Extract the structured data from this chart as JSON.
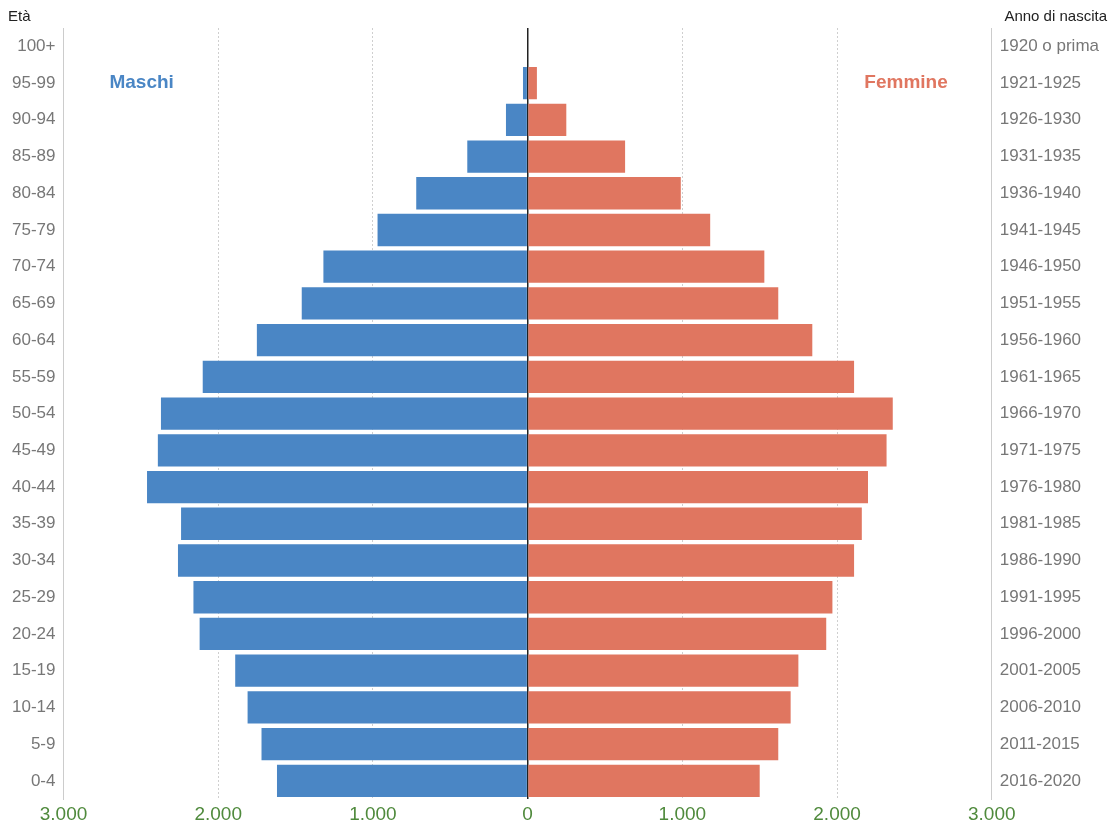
{
  "chart_data": {
    "type": "bar",
    "orientation": "horizontal",
    "stacked": true,
    "ylabel": "Età",
    "y2label": "Anno di nascita",
    "categories": [
      "100+",
      "95-99",
      "90-94",
      "85-89",
      "80-84",
      "75-79",
      "70-74",
      "65-69",
      "60-64",
      "55-59",
      "50-54",
      "45-49",
      "40-44",
      "35-39",
      "30-34",
      "25-29",
      "20-24",
      "15-19",
      "10-14",
      "5-9",
      "0-4"
    ],
    "y2_categories": [
      "1920 o prima",
      "1921-1925",
      "1926-1930",
      "1931-1935",
      "1936-1940",
      "1941-1945",
      "1946-1950",
      "1951-1955",
      "1956-1960",
      "1961-1965",
      "1966-1970",
      "1971-1975",
      "1976-1980",
      "1981-1985",
      "1986-1990",
      "1991-1995",
      "1996-2000",
      "2001-2005",
      "2006-2010",
      "2011-2015",
      "2016-2020"
    ],
    "series": [
      {
        "name": "Maschi",
        "color": "#4a86c5",
        "values": [
          0,
          -30,
          -140,
          -390,
          -720,
          -970,
          -1320,
          -1460,
          -1750,
          -2100,
          -2370,
          -2390,
          -2460,
          -2240,
          -2260,
          -2160,
          -2120,
          -1890,
          -1810,
          -1720,
          -1620
        ]
      },
      {
        "name": "Femmine",
        "color": "#e07660",
        "values": [
          0,
          60,
          250,
          630,
          990,
          1180,
          1530,
          1620,
          1840,
          2110,
          2360,
          2320,
          2200,
          2160,
          2110,
          1970,
          1930,
          1750,
          1700,
          1620,
          1500
        ]
      }
    ],
    "xlim": [
      -3000,
      3000
    ],
    "xticks": [
      {
        "value": -3000,
        "label": "3.000"
      },
      {
        "value": -2000,
        "label": "2.000"
      },
      {
        "value": -1000,
        "label": "1.000"
      },
      0,
      {
        "value": 1000,
        "label": "1.000"
      },
      {
        "value": 2000,
        "label": "2.000"
      },
      {
        "value": 3000,
        "label": "3.000"
      }
    ],
    "grid": "x",
    "legend": false
  }
}
